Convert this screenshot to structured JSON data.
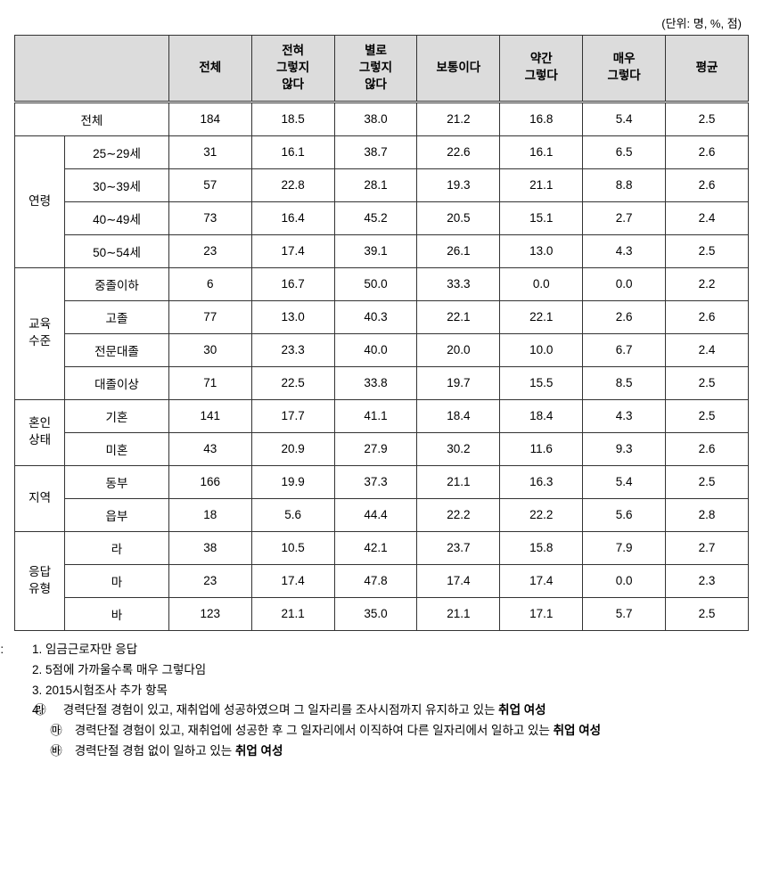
{
  "unit_label": "(단위: 명, %, 점)",
  "headers": {
    "blank": "",
    "total": "전체",
    "col1": "전혀\n그렇지\n않다",
    "col2": "별로\n그렇지\n않다",
    "col3": "보통이다",
    "col4": "약간\n그렇다",
    "col5": "매우\n그렇다",
    "avg": "평균"
  },
  "row_total": {
    "label": "전체",
    "cells": [
      "184",
      "18.5",
      "38.0",
      "21.2",
      "16.8",
      "5.4",
      "2.5"
    ]
  },
  "groups": [
    {
      "label": "연령",
      "rows": [
        {
          "label": "25∼29세",
          "cells": [
            "31",
            "16.1",
            "38.7",
            "22.6",
            "16.1",
            "6.5",
            "2.6"
          ]
        },
        {
          "label": "30∼39세",
          "cells": [
            "57",
            "22.8",
            "28.1",
            "19.3",
            "21.1",
            "8.8",
            "2.6"
          ]
        },
        {
          "label": "40∼49세",
          "cells": [
            "73",
            "16.4",
            "45.2",
            "20.5",
            "15.1",
            "2.7",
            "2.4"
          ]
        },
        {
          "label": "50∼54세",
          "cells": [
            "23",
            "17.4",
            "39.1",
            "26.1",
            "13.0",
            "4.3",
            "2.5"
          ]
        }
      ]
    },
    {
      "label": "교육\n수준",
      "rows": [
        {
          "label": "중졸이하",
          "cells": [
            "6",
            "16.7",
            "50.0",
            "33.3",
            "0.0",
            "0.0",
            "2.2"
          ]
        },
        {
          "label": "고졸",
          "cells": [
            "77",
            "13.0",
            "40.3",
            "22.1",
            "22.1",
            "2.6",
            "2.6"
          ]
        },
        {
          "label": "전문대졸",
          "cells": [
            "30",
            "23.3",
            "40.0",
            "20.0",
            "10.0",
            "6.7",
            "2.4"
          ]
        },
        {
          "label": "대졸이상",
          "cells": [
            "71",
            "22.5",
            "33.8",
            "19.7",
            "15.5",
            "8.5",
            "2.5"
          ]
        }
      ]
    },
    {
      "label": "혼인\n상태",
      "rows": [
        {
          "label": "기혼",
          "cells": [
            "141",
            "17.7",
            "41.1",
            "18.4",
            "18.4",
            "4.3",
            "2.5"
          ]
        },
        {
          "label": "미혼",
          "cells": [
            "43",
            "20.9",
            "27.9",
            "30.2",
            "11.6",
            "9.3",
            "2.6"
          ]
        }
      ]
    },
    {
      "label": "지역",
      "rows": [
        {
          "label": "동부",
          "cells": [
            "166",
            "19.9",
            "37.3",
            "21.1",
            "16.3",
            "5.4",
            "2.5"
          ]
        },
        {
          "label": "읍부",
          "cells": [
            "18",
            "5.6",
            "44.4",
            "22.2",
            "22.2",
            "5.6",
            "2.8"
          ]
        }
      ]
    },
    {
      "label": "응답\n유형",
      "rows": [
        {
          "label": "라",
          "cells": [
            "38",
            "10.5",
            "42.1",
            "23.7",
            "15.8",
            "7.9",
            "2.7"
          ]
        },
        {
          "label": "마",
          "cells": [
            "23",
            "17.4",
            "47.8",
            "17.4",
            "17.4",
            "0.0",
            "2.3"
          ]
        },
        {
          "label": "바",
          "cells": [
            "123",
            "21.1",
            "35.0",
            "21.1",
            "17.1",
            "5.7",
            "2.5"
          ]
        }
      ]
    }
  ],
  "notes": {
    "prefix": "주:",
    "n1": "1. 임금근로자만 응답",
    "n2": "2. 5점에 가까울수록 매우 그렇다임",
    "n3": "3. 2015시험조사 추가 항목",
    "n4": "4.",
    "sub_ra_mark": "㉱",
    "sub_ra": " 경력단절 경험이 있고, 재취업에 성공하였으며 그 일자리를 조사시점까지 유지하고 있는 ",
    "sub_ra_bold": "취업 여성",
    "sub_ma_mark": "㉲",
    "sub_ma": " 경력단절 경험이 있고, 재취업에 성공한 후 그 일자리에서 이직하여 다른 일자리에서 일하고 있는 ",
    "sub_ma_bold": "취업 여성",
    "sub_ba_mark": "㉳",
    "sub_ba": " 경력단절 경험 없이 일하고 있는 ",
    "sub_ba_bold": "취업 여성"
  }
}
